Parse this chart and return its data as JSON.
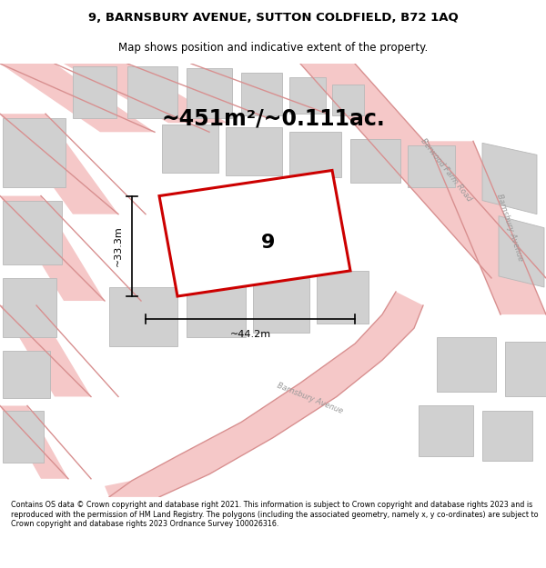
{
  "title_line1": "9, BARNSBURY AVENUE, SUTTON COLDFIELD, B72 1AQ",
  "title_line2": "Map shows position and indicative extent of the property.",
  "area_text": "~451m²/~0.111ac.",
  "plot_number": "9",
  "dim_width": "~44.2m",
  "dim_height": "~33.3m",
  "footer_text": "Contains OS data © Crown copyright and database right 2021. This information is subject to Crown copyright and database rights 2023 and is reproduced with the permission of HM Land Registry. The polygons (including the associated geometry, namely x, y co-ordinates) are subject to Crown copyright and database rights 2023 Ordnance Survey 100026316.",
  "bg_color": "#ebebeb",
  "road_fill": "#f5c8c8",
  "road_edge": "#d89090",
  "block_fill": "#d0d0d0",
  "block_edge": "#b8b8b8",
  "subject_fill": "#ffffff",
  "subject_edge": "#cc0000",
  "dim_color": "#000000",
  "label_color": "#999999",
  "text_color": "#000000",
  "footer_bg": "#ffffff",
  "title_fs": 9.5,
  "subtitle_fs": 8.5,
  "area_fs": 17,
  "plot_num_fs": 16,
  "dim_fs": 8,
  "road_label_fs": 6,
  "footer_fs": 5.8
}
